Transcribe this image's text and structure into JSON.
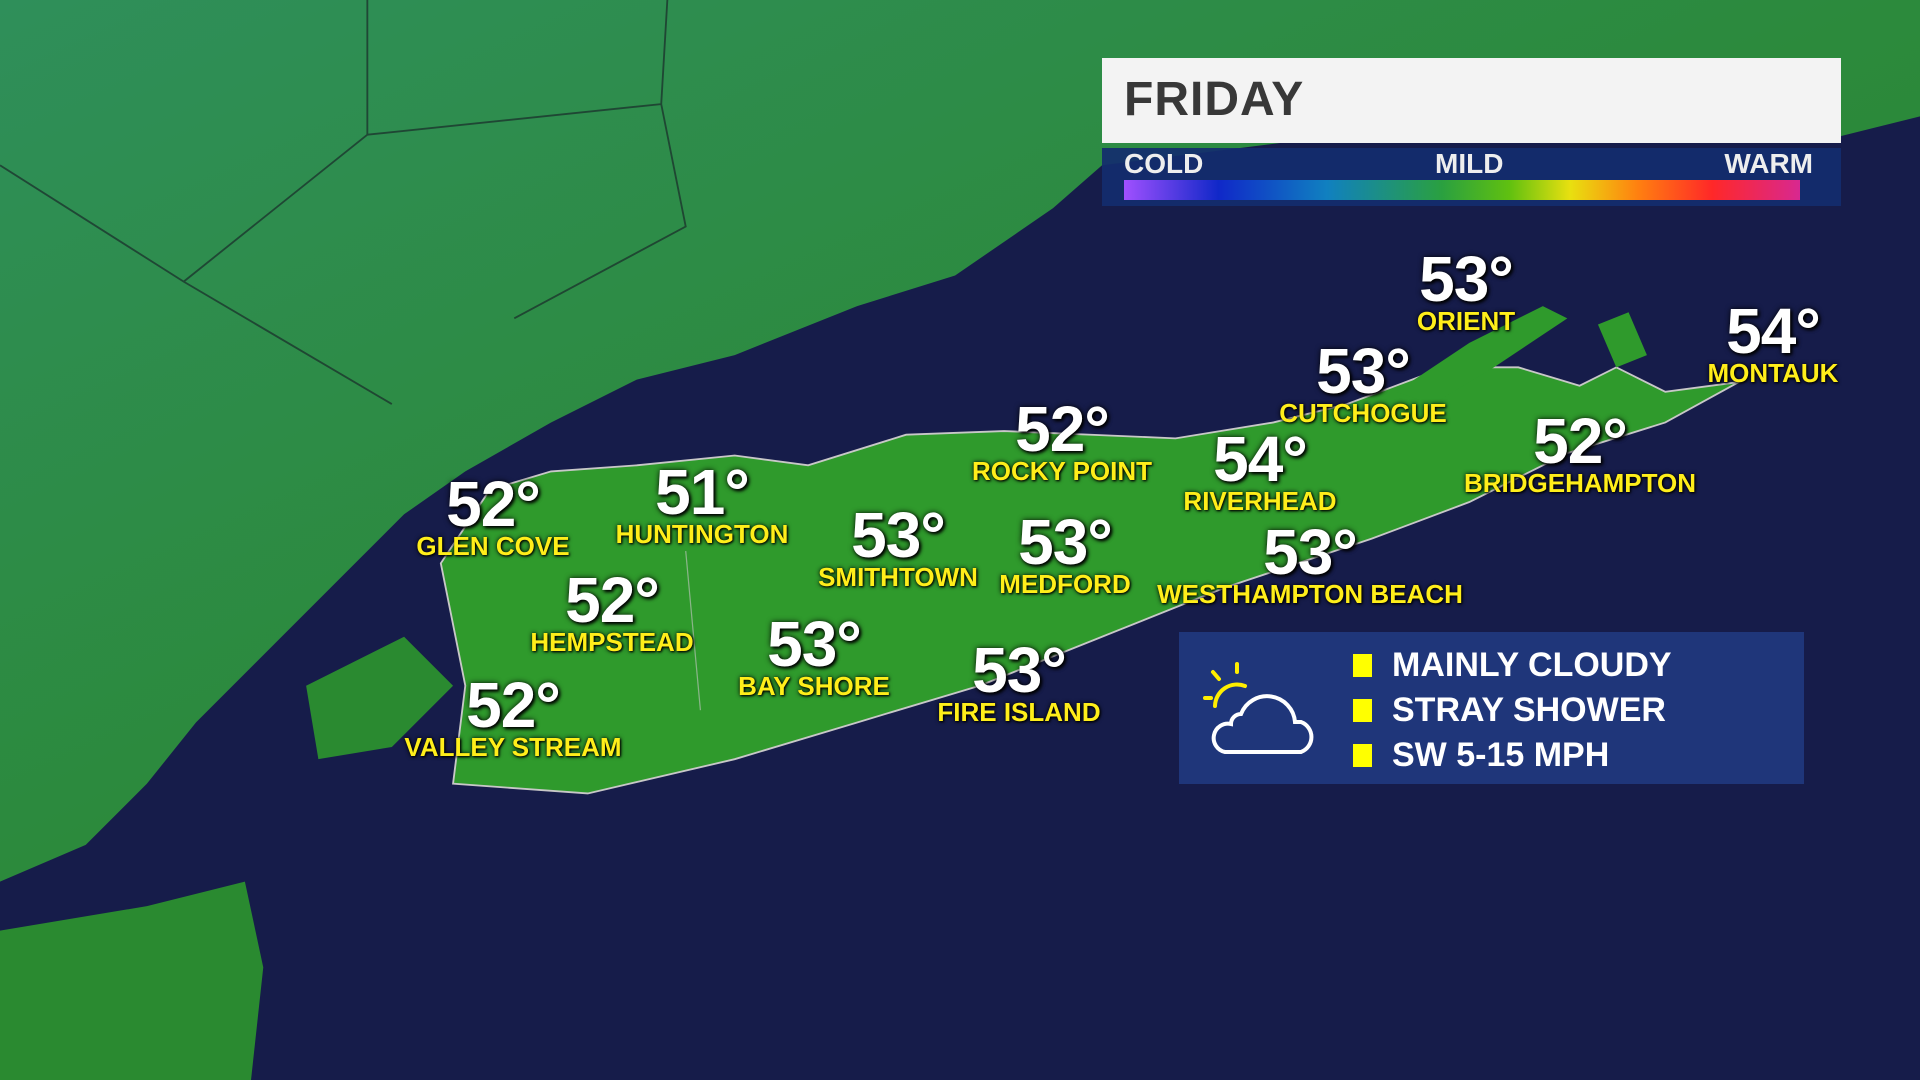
{
  "header": {
    "day": "FRIDAY"
  },
  "temperature_scale": {
    "low": "COLD",
    "mid": "MILD",
    "high": "WARM",
    "colors": [
      "#a050ff",
      "#1028c8",
      "#1080c0",
      "#2aa040",
      "#60c010",
      "#e8e010",
      "#ff8010",
      "#ff2828",
      "#d82890"
    ]
  },
  "cities": [
    {
      "name": "GLEN COVE",
      "temp": "52°"
    },
    {
      "name": "HUNTINGTON",
      "temp": "51°"
    },
    {
      "name": "SMITHTOWN",
      "temp": "53°"
    },
    {
      "name": "ROCKY POINT",
      "temp": "52°"
    },
    {
      "name": "MEDFORD",
      "temp": "53°"
    },
    {
      "name": "HEMPSTEAD",
      "temp": "52°"
    },
    {
      "name": "BAY SHORE",
      "temp": "53°"
    },
    {
      "name": "VALLEY STREAM",
      "temp": "52°"
    },
    {
      "name": "FIRE ISLAND",
      "temp": "53°"
    },
    {
      "name": "RIVERHEAD",
      "temp": "54°"
    },
    {
      "name": "WESTHAMPTON BEACH",
      "temp": "53°"
    },
    {
      "name": "CUTCHOGUE",
      "temp": "53°"
    },
    {
      "name": "ORIENT",
      "temp": "53°"
    },
    {
      "name": "BRIDGEHAMPTON",
      "temp": "52°"
    },
    {
      "name": "MONTAUK",
      "temp": "54°"
    }
  ],
  "conditions": {
    "icon": "partly-cloudy-icon",
    "items": [
      "MAINLY CLOUDY",
      "STRAY SHOWER",
      "SW 5-15 MPH"
    ]
  },
  "colors": {
    "land": "#2a8a30",
    "water": "#161c4a",
    "label": "#ffee1a",
    "bullet": "#ffff00",
    "panel": "#1f367a"
  }
}
